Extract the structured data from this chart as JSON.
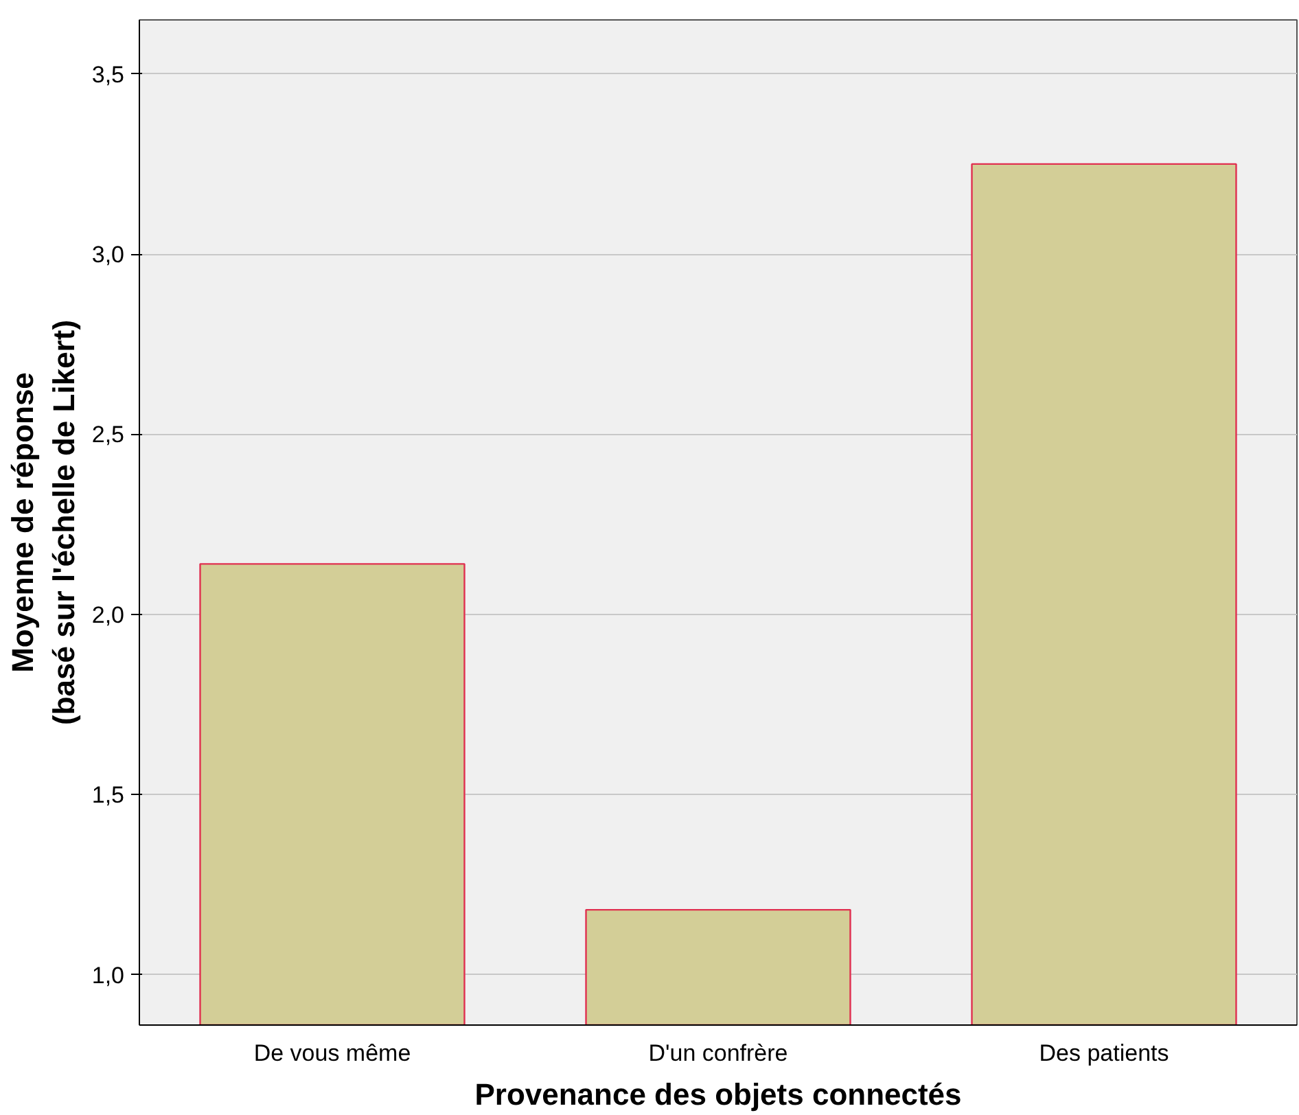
{
  "chart_data": {
    "type": "bar",
    "xlabel": "Provenance des objets connectés",
    "ylabel": "Moyenne de réponse\n(basé sur l'échelle de Likert)",
    "categories": [
      "De vous même",
      "D'un confrère",
      "Des patients"
    ],
    "values": [
      2.14,
      1.18,
      3.25
    ],
    "color": "#d3ce97",
    "ylim": [
      0.86,
      3.65
    ],
    "yticks": [
      {
        "value": 1.0,
        "label": "1,0"
      },
      {
        "value": 1.5,
        "label": "1,5"
      },
      {
        "value": 2.0,
        "label": "2,0"
      },
      {
        "value": 2.5,
        "label": "2,5"
      },
      {
        "value": 3.0,
        "label": "3,0"
      },
      {
        "value": 3.5,
        "label": "3,5"
      }
    ],
    "grid": "y"
  }
}
